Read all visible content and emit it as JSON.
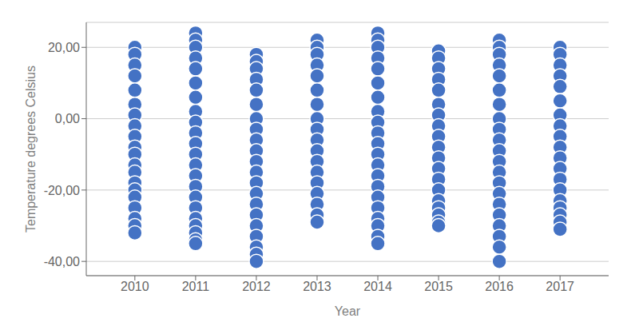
{
  "chart_data": {
    "type": "scatter",
    "xlabel": "Year",
    "ylabel": "Temperature degrees Celsius",
    "color": "#4472C4",
    "marker": "circle",
    "grid": "y",
    "xlim": [
      2009.2,
      2017.8
    ],
    "xticks": [
      2010,
      2011,
      2012,
      2013,
      2014,
      2015,
      2016,
      2017
    ],
    "ylim": [
      -44,
      27
    ],
    "yticks": [
      {
        "value": -40.0,
        "label": "-40,00"
      },
      {
        "value": -20.0,
        "label": "-20,00"
      },
      {
        "value": 0.0,
        "label": "0,00"
      },
      {
        "value": 20.0,
        "label": "20,00"
      }
    ],
    "x": [
      2010,
      2010,
      2010,
      2010,
      2010,
      2010,
      2010,
      2010,
      2010,
      2010,
      2010,
      2010,
      2010,
      2010,
      2010,
      2010,
      2010,
      2010,
      2010,
      2010,
      2011,
      2011,
      2011,
      2011,
      2011,
      2011,
      2011,
      2011,
      2011,
      2011,
      2011,
      2011,
      2011,
      2011,
      2011,
      2011,
      2011,
      2011,
      2011,
      2011,
      2011,
      2011,
      2012,
      2012,
      2012,
      2012,
      2012,
      2012,
      2012,
      2012,
      2012,
      2012,
      2012,
      2012,
      2012,
      2012,
      2012,
      2012,
      2012,
      2012,
      2012,
      2012,
      2012,
      2013,
      2013,
      2013,
      2013,
      2013,
      2013,
      2013,
      2013,
      2013,
      2013,
      2013,
      2013,
      2013,
      2013,
      2013,
      2013,
      2013,
      2013,
      2014,
      2014,
      2014,
      2014,
      2014,
      2014,
      2014,
      2014,
      2014,
      2014,
      2014,
      2014,
      2014,
      2014,
      2014,
      2014,
      2014,
      2014,
      2014,
      2014,
      2014,
      2015,
      2015,
      2015,
      2015,
      2015,
      2015,
      2015,
      2015,
      2015,
      2015,
      2015,
      2015,
      2015,
      2015,
      2015,
      2015,
      2015,
      2015,
      2015,
      2016,
      2016,
      2016,
      2016,
      2016,
      2016,
      2016,
      2016,
      2016,
      2016,
      2016,
      2016,
      2016,
      2016,
      2016,
      2016,
      2016,
      2016,
      2016,
      2016,
      2016,
      2017,
      2017,
      2017,
      2017,
      2017,
      2017,
      2017,
      2017,
      2017,
      2017,
      2017,
      2017,
      2017,
      2017,
      2017,
      2017,
      2017,
      2017,
      2017
    ],
    "values": [
      20,
      18,
      15,
      12,
      8,
      4,
      1,
      -2,
      -5,
      -8,
      -10,
      -13,
      -15,
      -18,
      -20,
      -22,
      -25,
      -28,
      -30,
      -32,
      24,
      22,
      20,
      17,
      14,
      10,
      6,
      2,
      -1,
      -4,
      -7,
      -10,
      -13,
      -16,
      -19,
      -22,
      -25,
      -28,
      -30,
      -32,
      -34,
      -35,
      18,
      16,
      14,
      11,
      8,
      4,
      0,
      -3,
      -6,
      -9,
      -12,
      -15,
      -18,
      -21,
      -24,
      -27,
      -30,
      -33,
      -36,
      -38,
      -40,
      22,
      20,
      18,
      15,
      12,
      8,
      4,
      0,
      -3,
      -6,
      -9,
      -12,
      -15,
      -18,
      -21,
      -24,
      -27,
      -29,
      24,
      22,
      20,
      17,
      14,
      10,
      6,
      2,
      -1,
      -4,
      -7,
      -10,
      -13,
      -16,
      -19,
      -22,
      -25,
      -28,
      -30,
      -33,
      -35,
      19,
      17,
      14,
      11,
      8,
      4,
      1,
      -2,
      -5,
      -8,
      -11,
      -14,
      -17,
      -20,
      -23,
      -25,
      -27,
      -29,
      -30,
      22,
      20,
      18,
      15,
      12,
      8,
      4,
      0,
      -3,
      -6,
      -9,
      -12,
      -15,
      -18,
      -21,
      -24,
      -27,
      -30,
      -33,
      -36,
      -40,
      20,
      18,
      15,
      12,
      9,
      5,
      1,
      -2,
      -5,
      -8,
      -11,
      -14,
      -17,
      -20,
      -23,
      -25,
      -27,
      -29,
      -31
    ]
  }
}
